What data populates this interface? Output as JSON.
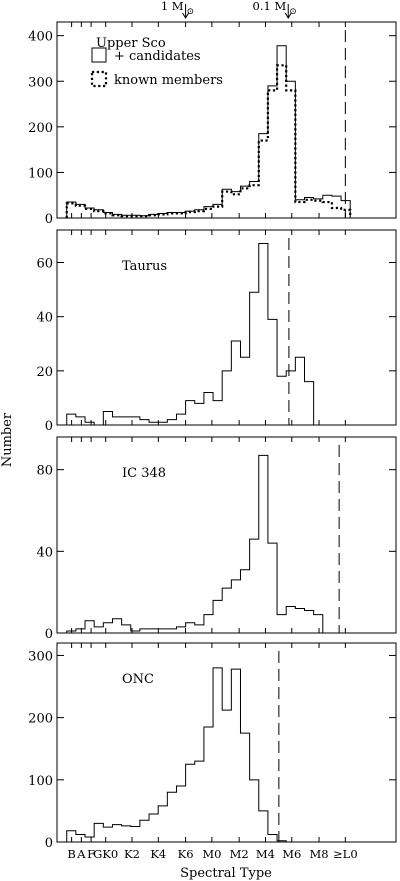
{
  "figure": {
    "ylabel": "Number",
    "xlabel": "Spectral Type",
    "xtick_labels": [
      "B",
      "A",
      "F",
      "GK0",
      "K2",
      "K4",
      "K6",
      "M0",
      "M2",
      "M4",
      "M6",
      "M8",
      "≥L0"
    ],
    "mass_markers": [
      {
        "label": "1 M",
        "sun": "⊙",
        "spectral_position": "K6"
      },
      {
        "label": "0.1 M",
        "sun": "⊙",
        "spectral_position": "M5.7"
      }
    ]
  },
  "chart_data": [
    {
      "type": "histogram",
      "panel": "Upper Sco",
      "annotation": "Upper Sco",
      "legend": {
        "placement": "top-left",
        "entries": [
          {
            "label": "+ candidates",
            "style": "solid"
          },
          {
            "label": "known members",
            "style": "dotted"
          }
        ]
      },
      "bin_edges": [
        -0.5,
        0.5,
        1.5,
        2.5,
        3.5,
        4.5,
        5.5,
        6.5,
        7.5,
        8.5,
        9.5,
        10.5,
        11.5,
        12.5,
        13.5,
        14.5,
        15.5,
        16.5,
        17.5,
        18.5,
        19.5,
        20.5,
        21.5,
        22.5,
        23.5,
        24.5,
        25.5,
        26.5,
        27.5,
        28.5,
        29.5,
        30.5,
        31.5,
        32.5
      ],
      "series": [
        {
          "name": "+ candidates",
          "style": "solid",
          "values": [
            35,
            30,
            22,
            18,
            12,
            8,
            6,
            6,
            5,
            8,
            10,
            12,
            12,
            15,
            18,
            25,
            30,
            63,
            58,
            70,
            80,
            185,
            290,
            378,
            300,
            40,
            45,
            42,
            50,
            48,
            38
          ]
        },
        {
          "name": "known members",
          "style": "dotted",
          "values": [
            32,
            27,
            20,
            15,
            10,
            6,
            4,
            4,
            4,
            6,
            8,
            10,
            10,
            13,
            15,
            20,
            25,
            58,
            52,
            65,
            72,
            170,
            280,
            335,
            280,
            35,
            40,
            38,
            35,
            22,
            18
          ]
        }
      ],
      "vline_spectral_position": "L0",
      "ylim": [
        0,
        430
      ],
      "yticks": [
        0,
        100,
        200,
        300,
        400
      ]
    },
    {
      "type": "histogram",
      "panel": "Taurus",
      "annotation": "Taurus",
      "bin_edges": [
        -0.5,
        0.5,
        1.5,
        2.5,
        3.5,
        4.5,
        5.5,
        6.5,
        7.5,
        8.5,
        9.5,
        10.5,
        11.5,
        12.5,
        13.5,
        14.5,
        15.5,
        16.5,
        17.5,
        18.5,
        19.5,
        20.5,
        21.5,
        22.5,
        23.5,
        24.5,
        25.5,
        26.5,
        27.5,
        28.5,
        29.5,
        30.5,
        31.5,
        32.5
      ],
      "series": [
        {
          "name": "",
          "style": "solid",
          "values": [
            4,
            3,
            1,
            0,
            5,
            3,
            3,
            3,
            2,
            1,
            1,
            2,
            4,
            9,
            8,
            12,
            9,
            20,
            31,
            25,
            49,
            67,
            39,
            18,
            20,
            25,
            16
          ]
        }
      ],
      "vline_spectral_position": "M5.75",
      "ylim": [
        0,
        72
      ],
      "yticks": [
        0,
        20,
        40,
        60
      ]
    },
    {
      "type": "histogram",
      "panel": "IC 348",
      "annotation": "IC 348",
      "bin_edges": [
        -0.5,
        0.5,
        1.5,
        2.5,
        3.5,
        4.5,
        5.5,
        6.5,
        7.5,
        8.5,
        9.5,
        10.5,
        11.5,
        12.5,
        13.5,
        14.5,
        15.5,
        16.5,
        17.5,
        18.5,
        19.5,
        20.5,
        21.5,
        22.5,
        23.5,
        24.5,
        25.5,
        26.5,
        27.5,
        28.5,
        29.5,
        30.5,
        31.5,
        32.5
      ],
      "series": [
        {
          "name": "",
          "style": "solid",
          "values": [
            1,
            2,
            6,
            3,
            5,
            7,
            4,
            1,
            2,
            2,
            2,
            2,
            3,
            5,
            4,
            9,
            16,
            22,
            26,
            31,
            46,
            87,
            44,
            9,
            13,
            12,
            11,
            9
          ]
        }
      ],
      "vline_spectral_position": "M9.5",
      "ylim": [
        0,
        96
      ],
      "yticks": [
        0,
        40,
        80
      ]
    },
    {
      "type": "histogram",
      "panel": "ONC",
      "annotation": "ONC",
      "bin_edges": [
        -0.5,
        0.5,
        1.5,
        2.5,
        3.5,
        4.5,
        5.5,
        6.5,
        7.5,
        8.5,
        9.5,
        10.5,
        11.5,
        12.5,
        13.5,
        14.5,
        15.5,
        16.5,
        17.5,
        18.5,
        19.5,
        20.5,
        21.5,
        22.5,
        23.5,
        24.5,
        25.5,
        26.5,
        27.5,
        28.5,
        29.5,
        30.5,
        31.5,
        32.5
      ],
      "series": [
        {
          "name": "",
          "style": "solid",
          "values": [
            18,
            12,
            8,
            30,
            24,
            28,
            26,
            25,
            35,
            45,
            58,
            80,
            90,
            125,
            130,
            185,
            280,
            212,
            278,
            175,
            100,
            50,
            12,
            2,
            0
          ]
        }
      ],
      "vline_spectral_position": "M5",
      "ylim": [
        0,
        320
      ],
      "yticks": [
        0,
        100,
        200,
        300
      ]
    }
  ]
}
